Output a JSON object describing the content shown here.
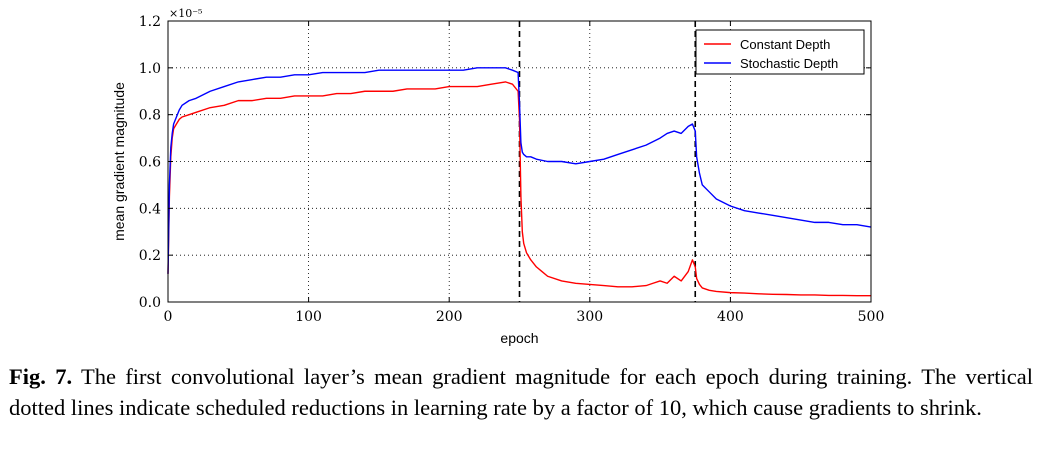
{
  "chart_data": {
    "type": "line",
    "title": "",
    "xlabel": "epoch",
    "ylabel": "mean gradient magnitude",
    "x_ticks": [
      "0",
      "100",
      "200",
      "300",
      "400",
      "500"
    ],
    "y_ticks": [
      "0.0",
      "0.2",
      "0.4",
      "0.6",
      "0.8",
      "1.0",
      "1.2"
    ],
    "y_scale_label": "×10⁻⁵",
    "xlim": [
      0,
      500
    ],
    "ylim": [
      0.0,
      1.2
    ],
    "grid": true,
    "legend_position": "top-right",
    "vlines": [
      250,
      375
    ],
    "series": [
      {
        "name": "Constant Depth",
        "color": "#ff0000",
        "x": [
          0,
          1,
          2,
          3,
          4,
          6,
          8,
          10,
          15,
          20,
          30,
          40,
          50,
          60,
          70,
          80,
          90,
          100,
          110,
          120,
          130,
          140,
          150,
          160,
          170,
          180,
          190,
          200,
          210,
          220,
          230,
          240,
          245,
          249,
          250,
          251,
          252,
          253,
          255,
          258,
          262,
          266,
          270,
          280,
          290,
          300,
          310,
          320,
          330,
          340,
          345,
          350,
          355,
          360,
          365,
          370,
          373,
          375,
          376,
          378,
          380,
          385,
          390,
          400,
          410,
          420,
          430,
          440,
          450,
          460,
          470,
          480,
          490,
          500
        ],
        "values": [
          0.12,
          0.45,
          0.62,
          0.7,
          0.74,
          0.76,
          0.78,
          0.79,
          0.8,
          0.81,
          0.83,
          0.84,
          0.86,
          0.86,
          0.87,
          0.87,
          0.88,
          0.88,
          0.88,
          0.89,
          0.89,
          0.9,
          0.9,
          0.9,
          0.91,
          0.91,
          0.91,
          0.92,
          0.92,
          0.92,
          0.93,
          0.94,
          0.93,
          0.9,
          0.78,
          0.45,
          0.3,
          0.25,
          0.21,
          0.18,
          0.15,
          0.13,
          0.11,
          0.09,
          0.08,
          0.075,
          0.07,
          0.065,
          0.065,
          0.07,
          0.08,
          0.09,
          0.08,
          0.11,
          0.09,
          0.13,
          0.18,
          0.15,
          0.1,
          0.075,
          0.06,
          0.05,
          0.045,
          0.04,
          0.038,
          0.035,
          0.033,
          0.032,
          0.03,
          0.03,
          0.028,
          0.028,
          0.027,
          0.027
        ]
      },
      {
        "name": "Stochastic Depth",
        "color": "#0000ff",
        "x": [
          0,
          1,
          2,
          3,
          4,
          6,
          8,
          10,
          15,
          20,
          30,
          40,
          50,
          60,
          70,
          80,
          90,
          100,
          110,
          120,
          130,
          140,
          150,
          160,
          170,
          180,
          190,
          200,
          210,
          220,
          230,
          240,
          245,
          249,
          250,
          251,
          252,
          253,
          255,
          258,
          262,
          270,
          280,
          290,
          300,
          310,
          320,
          330,
          340,
          350,
          355,
          360,
          365,
          370,
          373,
          375,
          376,
          378,
          380,
          385,
          390,
          400,
          410,
          420,
          430,
          440,
          450,
          460,
          470,
          480,
          490,
          500
        ],
        "values": [
          0.12,
          0.5,
          0.66,
          0.72,
          0.76,
          0.79,
          0.82,
          0.84,
          0.86,
          0.87,
          0.9,
          0.92,
          0.94,
          0.95,
          0.96,
          0.96,
          0.97,
          0.97,
          0.98,
          0.98,
          0.98,
          0.98,
          0.99,
          0.99,
          0.99,
          0.99,
          0.99,
          0.99,
          0.99,
          1.0,
          1.0,
          1.0,
          0.99,
          0.98,
          0.85,
          0.68,
          0.64,
          0.63,
          0.62,
          0.62,
          0.61,
          0.6,
          0.6,
          0.59,
          0.6,
          0.61,
          0.63,
          0.65,
          0.67,
          0.7,
          0.72,
          0.73,
          0.72,
          0.75,
          0.76,
          0.73,
          0.62,
          0.55,
          0.5,
          0.47,
          0.44,
          0.41,
          0.39,
          0.38,
          0.37,
          0.36,
          0.35,
          0.34,
          0.34,
          0.33,
          0.33,
          0.32
        ]
      }
    ]
  },
  "caption": {
    "label": "Fig. 7.",
    "text": "The first convolutional layer’s mean gradient magnitude for each epoch during training. The vertical dotted lines indicate scheduled reductions in learning rate by a factor of 10, which cause gradients to shrink."
  }
}
